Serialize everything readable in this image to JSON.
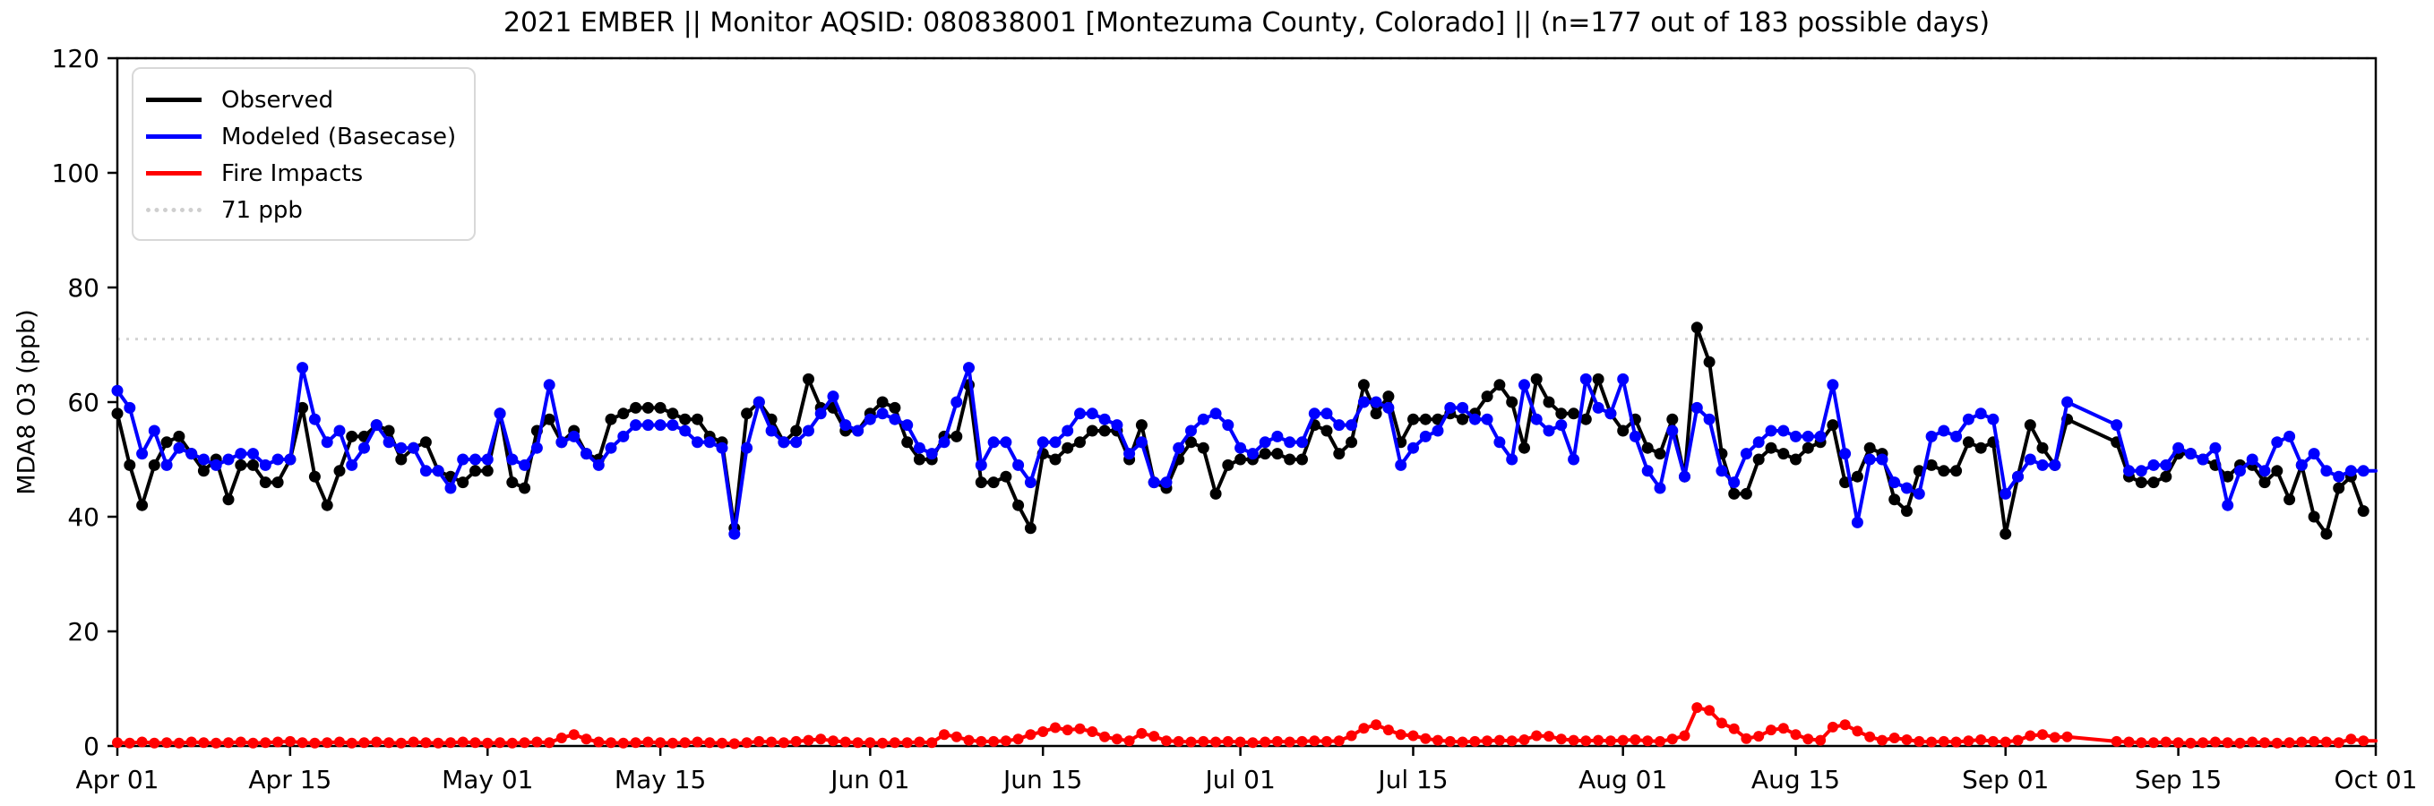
{
  "chart_data": {
    "type": "line",
    "title": "2021 EMBER || Monitor AQSID: 080838001 [Montezuma County, Colorado] || (n=177 out of 183 possible days)",
    "ylabel": "MDA8 O3 (ppb)",
    "xlabel": "",
    "ylim": [
      0,
      120
    ],
    "yticks": [
      0,
      20,
      40,
      60,
      80,
      100,
      120
    ],
    "x_start_date": "2021-04-01",
    "x_end_date": "2021-10-01",
    "x_span_days": 183,
    "grid": "off",
    "legend_position": "upper-left",
    "xticks": [
      {
        "label": "Apr 01",
        "day": 0
      },
      {
        "label": "Apr 15",
        "day": 14
      },
      {
        "label": "May 01",
        "day": 30
      },
      {
        "label": "May 15",
        "day": 44
      },
      {
        "label": "Jun 01",
        "day": 61
      },
      {
        "label": "Jun 15",
        "day": 75
      },
      {
        "label": "Jul 01",
        "day": 91
      },
      {
        "label": "Jul 15",
        "day": 105
      },
      {
        "label": "Aug 01",
        "day": 122
      },
      {
        "label": "Aug 15",
        "day": 136
      },
      {
        "label": "Sep 01",
        "day": 153
      },
      {
        "label": "Sep 15",
        "day": 167
      },
      {
        "label": "Oct 01",
        "day": 183
      }
    ],
    "ref_lines": [
      {
        "value": 71,
        "label": "71 ppb",
        "color": "#d3d3d3",
        "style": "dotted"
      },
      {
        "value": 120,
        "label": "",
        "color": "#d3d3d3",
        "style": "dotted"
      }
    ],
    "series": [
      {
        "name": "Observed",
        "color": "#000000",
        "marker_radius": 6.5,
        "extend_to_end": false,
        "values": [
          58,
          49,
          42,
          49,
          53,
          54,
          51,
          48,
          50,
          43,
          49,
          49,
          46,
          46,
          50,
          59,
          47,
          42,
          48,
          54,
          54,
          56,
          55,
          50,
          52,
          53,
          48,
          47,
          46,
          48,
          48,
          58,
          46,
          45,
          55,
          57,
          53,
          55,
          51,
          50,
          57,
          58,
          59,
          59,
          59,
          58,
          57,
          57,
          54,
          53,
          38,
          58,
          60,
          57,
          53,
          55,
          64,
          59,
          59,
          55,
          55,
          58,
          60,
          59,
          53,
          50,
          50,
          54,
          54,
          63,
          46,
          46,
          47,
          42,
          38,
          51,
          50,
          52,
          53,
          55,
          55,
          55,
          50,
          56,
          46,
          45,
          50,
          53,
          52,
          44,
          49,
          50,
          50,
          51,
          51,
          50,
          50,
          56,
          55,
          51,
          53,
          63,
          58,
          61,
          53,
          57,
          57,
          57,
          58,
          57,
          58,
          61,
          63,
          60,
          52,
          64,
          60,
          58,
          58,
          57,
          64,
          58,
          55,
          57,
          52,
          51,
          57,
          47,
          73,
          67,
          51,
          44,
          44,
          50,
          52,
          51,
          50,
          52,
          53,
          56,
          46,
          47,
          52,
          51,
          43,
          41,
          48,
          49,
          48,
          48,
          53,
          52,
          53,
          37,
          47,
          56,
          52,
          49,
          57,
          null,
          null,
          null,
          53,
          47,
          46,
          46,
          47,
          51,
          51,
          50,
          49,
          47,
          49,
          49,
          46,
          48,
          43,
          49,
          40,
          37,
          45,
          47,
          41
        ]
      },
      {
        "name": "Modeled (Basecase)",
        "color": "#0000ff",
        "marker_radius": 6.5,
        "extend_to_end": true,
        "values": [
          62,
          59,
          51,
          55,
          49,
          52,
          51,
          50,
          49,
          50,
          51,
          51,
          49,
          50,
          50,
          66,
          57,
          53,
          55,
          49,
          52,
          56,
          53,
          52,
          52,
          48,
          48,
          45,
          50,
          50,
          50,
          58,
          50,
          49,
          52,
          63,
          53,
          54,
          51,
          49,
          52,
          54,
          56,
          56,
          56,
          56,
          55,
          53,
          53,
          52,
          37,
          52,
          60,
          55,
          53,
          53,
          55,
          58,
          61,
          56,
          55,
          57,
          58,
          57,
          56,
          52,
          51,
          53,
          60,
          66,
          49,
          53,
          53,
          49,
          46,
          53,
          53,
          55,
          58,
          58,
          57,
          56,
          51,
          53,
          46,
          46,
          52,
          55,
          57,
          58,
          56,
          52,
          51,
          53,
          54,
          53,
          53,
          58,
          58,
          56,
          56,
          60,
          60,
          59,
          49,
          52,
          54,
          55,
          59,
          59,
          57,
          57,
          53,
          50,
          63,
          57,
          55,
          56,
          50,
          64,
          59,
          58,
          64,
          54,
          48,
          45,
          55,
          47,
          59,
          57,
          48,
          46,
          51,
          53,
          55,
          55,
          54,
          54,
          54,
          63,
          51,
          39,
          50,
          50,
          46,
          45,
          44,
          54,
          55,
          54,
          57,
          58,
          57,
          44,
          47,
          50,
          49,
          49,
          60,
          null,
          null,
          null,
          56,
          48,
          48,
          49,
          49,
          52,
          51,
          50,
          52,
          42,
          48,
          50,
          48,
          53,
          54,
          49,
          51,
          48,
          47,
          48,
          48
        ]
      },
      {
        "name": "Fire Impacts",
        "color": "#ff0000",
        "marker_radius": 6,
        "extend_to_end": true,
        "values": [
          0.6,
          0.5,
          0.7,
          0.5,
          0.6,
          0.5,
          0.7,
          0.6,
          0.5,
          0.6,
          0.7,
          0.5,
          0.6,
          0.7,
          0.8,
          0.6,
          0.5,
          0.6,
          0.7,
          0.5,
          0.6,
          0.7,
          0.6,
          0.5,
          0.7,
          0.6,
          0.5,
          0.6,
          0.7,
          0.6,
          0.5,
          0.6,
          0.5,
          0.6,
          0.7,
          0.6,
          1.4,
          2.0,
          1.2,
          0.7,
          0.6,
          0.5,
          0.6,
          0.7,
          0.6,
          0.5,
          0.6,
          0.7,
          0.6,
          0.5,
          0.4,
          0.6,
          0.8,
          0.7,
          0.6,
          0.8,
          1.0,
          1.2,
          0.9,
          0.7,
          0.6,
          0.6,
          0.5,
          0.6,
          0.6,
          0.7,
          0.6,
          2.0,
          1.6,
          1.0,
          0.8,
          0.8,
          0.9,
          1.2,
          2.0,
          2.5,
          3.2,
          2.8,
          3.0,
          2.5,
          1.6,
          1.2,
          0.9,
          2.2,
          1.7,
          0.9,
          0.8,
          0.7,
          0.8,
          0.7,
          0.8,
          0.7,
          0.6,
          0.7,
          0.8,
          0.7,
          0.8,
          0.9,
          0.8,
          0.9,
          1.8,
          3.1,
          3.7,
          2.8,
          2.0,
          1.8,
          1.3,
          1.0,
          0.8,
          0.7,
          0.8,
          0.9,
          1.0,
          0.9,
          1.1,
          1.8,
          1.7,
          1.2,
          1.0,
          0.9,
          1.0,
          0.9,
          1.0,
          1.1,
          0.9,
          0.8,
          1.2,
          1.8,
          6.7,
          6.2,
          4.0,
          3.0,
          1.3,
          1.7,
          2.8,
          3.1,
          2.0,
          1.2,
          1.0,
          3.3,
          3.7,
          2.6,
          1.6,
          1.0,
          1.4,
          1.1,
          0.8,
          0.7,
          0.8,
          0.7,
          0.9,
          1.1,
          0.8,
          0.7,
          1.0,
          1.8,
          2.0,
          1.5,
          1.6,
          null,
          null,
          null,
          0.8,
          0.7,
          0.6,
          0.6,
          0.7,
          0.6,
          0.5,
          0.6,
          0.7,
          0.6,
          0.5,
          0.7,
          0.6,
          0.5,
          0.6,
          0.7,
          0.8,
          0.7,
          0.6,
          1.2,
          0.9
        ]
      }
    ],
    "legend_ref_label": "71 ppb"
  },
  "layout_colors": {
    "axis": "#000000",
    "background": "#ffffff",
    "ref_dotted": "#d3d3d3"
  }
}
